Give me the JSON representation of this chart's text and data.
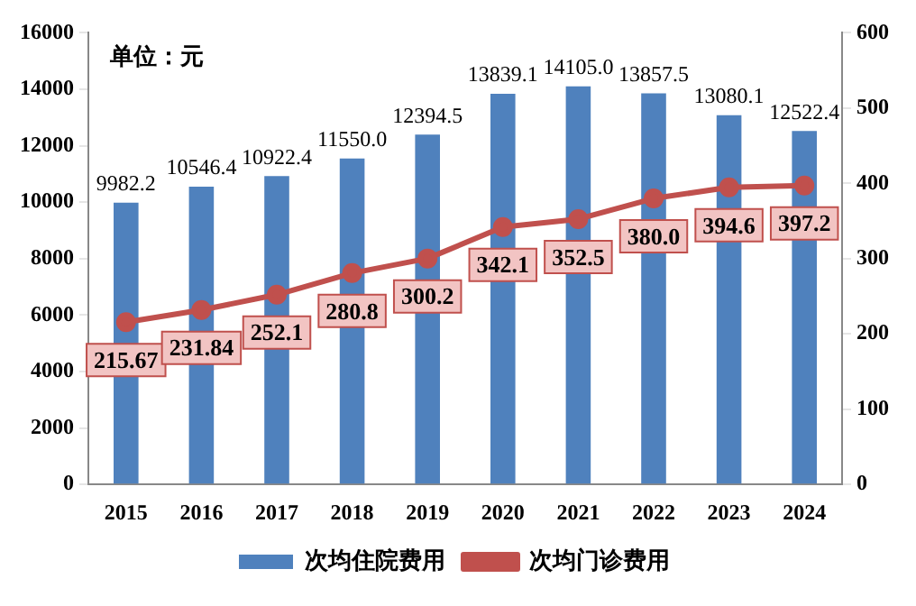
{
  "chart_data": {
    "type": "bar",
    "categories": [
      "2015",
      "2016",
      "2017",
      "2018",
      "2019",
      "2020",
      "2021",
      "2022",
      "2023",
      "2024"
    ],
    "series": [
      {
        "name": "次均住院费用",
        "color": "#4f81bd",
        "values": [
          9982.2,
          10546.4,
          10922.4,
          11550.0,
          12394.5,
          13839.1,
          14105.0,
          13857.5,
          13080.1,
          12522.4
        ],
        "value_labels": [
          "9982.2",
          "10546.4",
          "10922.4",
          "11550.0",
          "12394.5",
          "13839.1",
          "14105.0",
          "13857.5",
          "13080.1",
          "12522.4"
        ]
      },
      {
        "name": "次均门诊费用",
        "type": "line",
        "axis": "y2",
        "color": "#c0504d",
        "values": [
          215.67,
          231.84,
          252.1,
          280.8,
          300.2,
          342.1,
          352.5,
          380.0,
          394.6,
          397.2
        ],
        "value_labels": [
          "215.67",
          "231.84",
          "252.1",
          "280.8",
          "300.2",
          "342.1",
          "352.5",
          "380.0",
          "394.6",
          "397.2"
        ]
      }
    ],
    "ylim": [
      0,
      16000
    ],
    "yticks": [
      0,
      2000,
      4000,
      6000,
      8000,
      10000,
      12000,
      14000,
      16000
    ],
    "y2lim": [
      0,
      600
    ],
    "y2ticks": [
      0,
      100,
      200,
      300,
      400,
      500,
      600
    ],
    "annotations": [
      "单位：元"
    ],
    "grid": false,
    "legend": "bottom",
    "marker": "circle",
    "line_style": "solid"
  }
}
